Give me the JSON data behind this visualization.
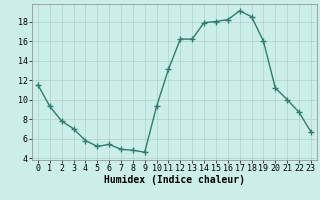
{
  "x": [
    0,
    1,
    2,
    3,
    4,
    5,
    6,
    7,
    8,
    9,
    10,
    11,
    12,
    13,
    14,
    15,
    16,
    17,
    18,
    19,
    20,
    21,
    22,
    23
  ],
  "y": [
    11.5,
    9.3,
    7.8,
    7.0,
    5.8,
    5.2,
    5.4,
    4.9,
    4.8,
    4.6,
    9.3,
    13.1,
    16.2,
    16.2,
    17.9,
    18.0,
    18.2,
    19.1,
    18.5,
    16.0,
    11.2,
    10.0,
    8.7,
    6.7
  ],
  "line_color": "#2e7d6e",
  "marker": "+",
  "marker_size": 4,
  "line_width": 1.0,
  "bg_color": "#cceee8",
  "grid_color": "#b0d0cc",
  "xlabel": "Humidex (Indice chaleur)",
  "xlabel_fontsize": 7,
  "tick_fontsize": 6,
  "xlim": [
    -0.5,
    23.5
  ],
  "ylim": [
    3.8,
    19.8
  ],
  "yticks": [
    4,
    6,
    8,
    10,
    12,
    14,
    16,
    18
  ],
  "xticks": [
    0,
    1,
    2,
    3,
    4,
    5,
    6,
    7,
    8,
    9,
    10,
    11,
    12,
    13,
    14,
    15,
    16,
    17,
    18,
    19,
    20,
    21,
    22,
    23
  ]
}
